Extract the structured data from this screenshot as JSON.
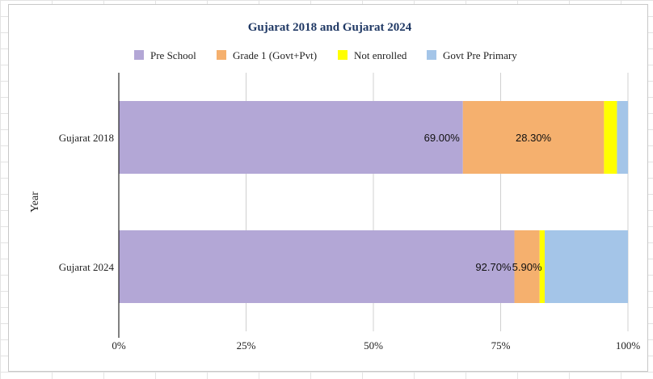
{
  "chart_data": {
    "type": "bar",
    "orientation": "horizontal",
    "stacked": "percent",
    "title": "Gujarat 2018 and Gujarat 2024",
    "ylabel": "Year",
    "xlabel": "",
    "categories": [
      "Gujarat 2018",
      "Gujarat 2024"
    ],
    "x_ticks": [
      "0%",
      "25%",
      "50%",
      "75%",
      "100%"
    ],
    "xlim": [
      0,
      100
    ],
    "grid": "vertical",
    "legend_position": "top",
    "series": [
      {
        "name": "Pre School",
        "values": [
          69.0,
          92.7
        ],
        "labels": [
          "69.00%",
          "92.70%"
        ],
        "color": "#b3a7d6"
      },
      {
        "name": "Grade 1 (Govt+Pvt)",
        "values": [
          28.3,
          5.9
        ],
        "labels": [
          "28.30%",
          "5.90%"
        ],
        "color": "#f5b06e"
      },
      {
        "name": "Not enrolled",
        "values": [
          2.6,
          1.2
        ],
        "labels": [
          "",
          ""
        ],
        "color": "#ffff00"
      },
      {
        "name": "Govt Pre Primary",
        "values": [
          2.2,
          19.5
        ],
        "labels": [
          "",
          ""
        ],
        "color": "#a4c5e8"
      }
    ],
    "colors": {
      "title": "#1f3864",
      "axis": "#000000",
      "grid": "#d0d0d0"
    }
  }
}
